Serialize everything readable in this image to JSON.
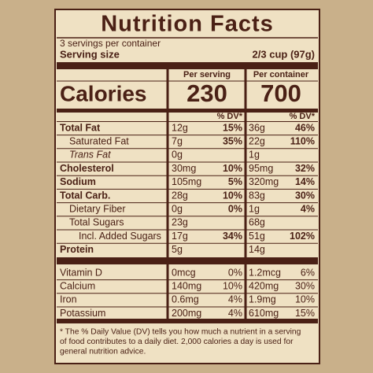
{
  "header": {
    "title": "Nutrition Facts",
    "servings": "3 servings per container",
    "serving_size_label": "Serving size",
    "serving_size_value": "2/3 cup (97g)"
  },
  "calories": {
    "label": "Calories",
    "per_serving_label": "Per serving",
    "per_serving": "230",
    "per_container_label": "Per container",
    "per_container": "700"
  },
  "dv_header": [
    "% DV*",
    "% DV*"
  ],
  "nutrients": [
    {
      "name": "Total Fat",
      "serving": "12g",
      "serving_dv": "15%",
      "container": "36g",
      "container_dv": "46%"
    },
    {
      "name": "Saturated Fat",
      "serving": "7g",
      "serving_dv": "35%",
      "container": "22g",
      "container_dv": "110%"
    },
    {
      "name": "Trans Fat",
      "serving": "0g",
      "serving_dv": null,
      "container": "1g",
      "container_dv": null
    },
    {
      "name": "Cholesterol",
      "serving": "30mg",
      "serving_dv": "10%",
      "container": "95mg",
      "container_dv": "32%"
    },
    {
      "name": "Sodium",
      "serving": "105mg",
      "serving_dv": "5%",
      "container": "320mg",
      "container_dv": "14%"
    },
    {
      "name": "Total Carb.",
      "serving": "28g",
      "serving_dv": "10%",
      "container": "83g",
      "container_dv": "30%"
    },
    {
      "name": "Dietary Fiber",
      "serving": "0g",
      "serving_dv": "0%",
      "container": "1g",
      "container_dv": "4%"
    },
    {
      "name": "Total Sugars",
      "serving": "23g",
      "serving_dv": null,
      "container": "68g",
      "container_dv": null
    },
    {
      "name": "Incl. Added Sugars",
      "serving": "17g",
      "serving_dv": "34%",
      "container": "51g",
      "container_dv": "102%"
    },
    {
      "name": "Protein",
      "serving": "5g",
      "serving_dv": null,
      "container": "14g",
      "container_dv": null
    }
  ],
  "vitamins": [
    {
      "name": "Vitamin D",
      "serving": "0mcg",
      "serving_dv": "0%",
      "container": "1.2mcg",
      "container_dv": "6%"
    },
    {
      "name": "Calcium",
      "serving": "140mg",
      "serving_dv": "10%",
      "container": "420mg",
      "container_dv": "30%"
    },
    {
      "name": "Iron",
      "serving": "0.6mg",
      "serving_dv": "4%",
      "container": "1.9mg",
      "container_dv": "10%"
    },
    {
      "name": "Potassium",
      "serving": "200mg",
      "serving_dv": "4%",
      "container": "610mg",
      "container_dv": "15%"
    }
  ],
  "footnote": [
    "* The % Daily Value (DV) tells you how much a nutrient in a serving",
    "of food contributes to a daily diet. 2,000 calories a day is used for",
    "general nutrition advice."
  ]
}
